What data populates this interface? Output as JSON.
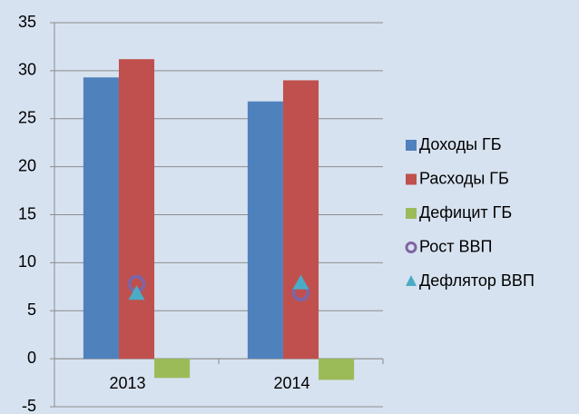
{
  "chart_data": {
    "type": "bar",
    "categories": [
      "2013",
      "2014"
    ],
    "series": [
      {
        "name": "Доходы ГБ",
        "color": "#4f81bd",
        "values": [
          29.3,
          26.8
        ]
      },
      {
        "name": "Расходы ГБ",
        "color": "#c0504d",
        "values": [
          31.2,
          29.0
        ]
      },
      {
        "name": "Дефицит ГБ",
        "color": "#9bbb59",
        "values": [
          -2.0,
          -2.2
        ]
      },
      {
        "name": "Рост ВВП",
        "color": "#8064a2",
        "marker": "circle",
        "values": [
          7.8,
          6.9
        ]
      },
      {
        "name": "Дефлятор ВВП",
        "color": "#4bacc6",
        "marker": "triangle",
        "values": [
          6.8,
          7.9
        ]
      }
    ],
    "ylim": [
      -5,
      35
    ],
    "yticks": [
      -5,
      0,
      5,
      10,
      15,
      20,
      25,
      30,
      35
    ],
    "grid": true,
    "legend": "right"
  }
}
